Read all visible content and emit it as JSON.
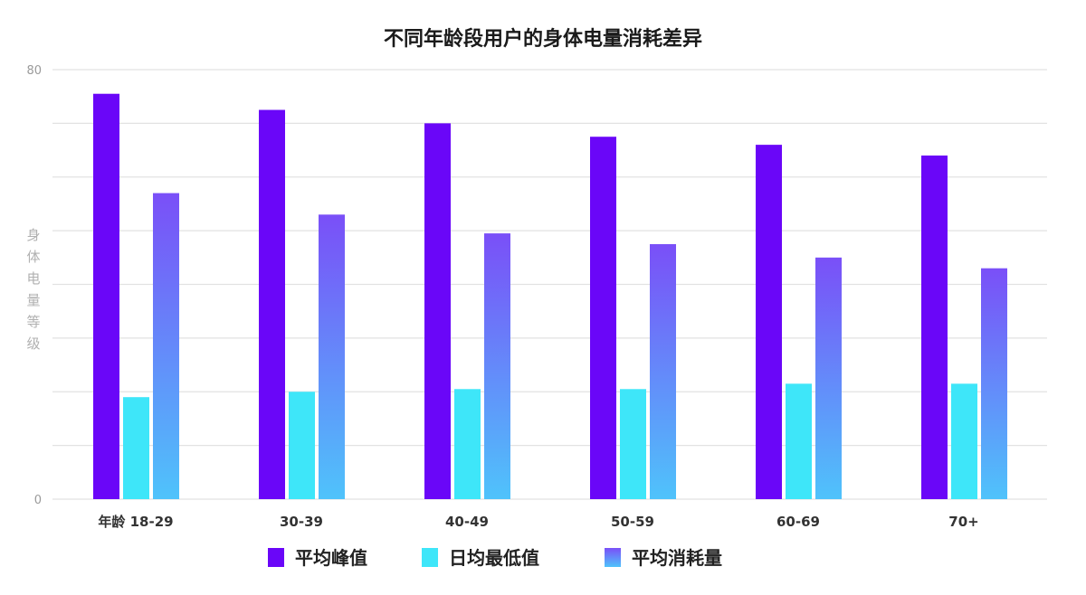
{
  "chart_data": {
    "type": "bar",
    "title": "不同年龄段用户的身体电量消耗差异",
    "xlabel": "",
    "ylabel": "身体电量等级",
    "ylim": [
      0,
      80
    ],
    "yticks": [
      "0",
      "80"
    ],
    "grid": true,
    "gridStep": 10,
    "legend": "bottom",
    "categories": [
      "年龄 18-29",
      "30-39",
      "40-49",
      "50-59",
      "60-69",
      "70+"
    ],
    "series": [
      {
        "name": "平均峰值",
        "color": "#6a06f8",
        "values": [
          75.5,
          72.5,
          70,
          67.5,
          66,
          64
        ]
      },
      {
        "name": "日均最低值",
        "color": "#3ee6f9",
        "values": [
          19,
          20,
          20.5,
          20.5,
          21.5,
          21.5
        ]
      },
      {
        "name": "平均消耗量",
        "color": "#7a4ff8",
        "colorBottom": "#4fc3fb",
        "values": [
          57,
          53,
          49.5,
          47.5,
          45,
          43
        ]
      }
    ]
  }
}
